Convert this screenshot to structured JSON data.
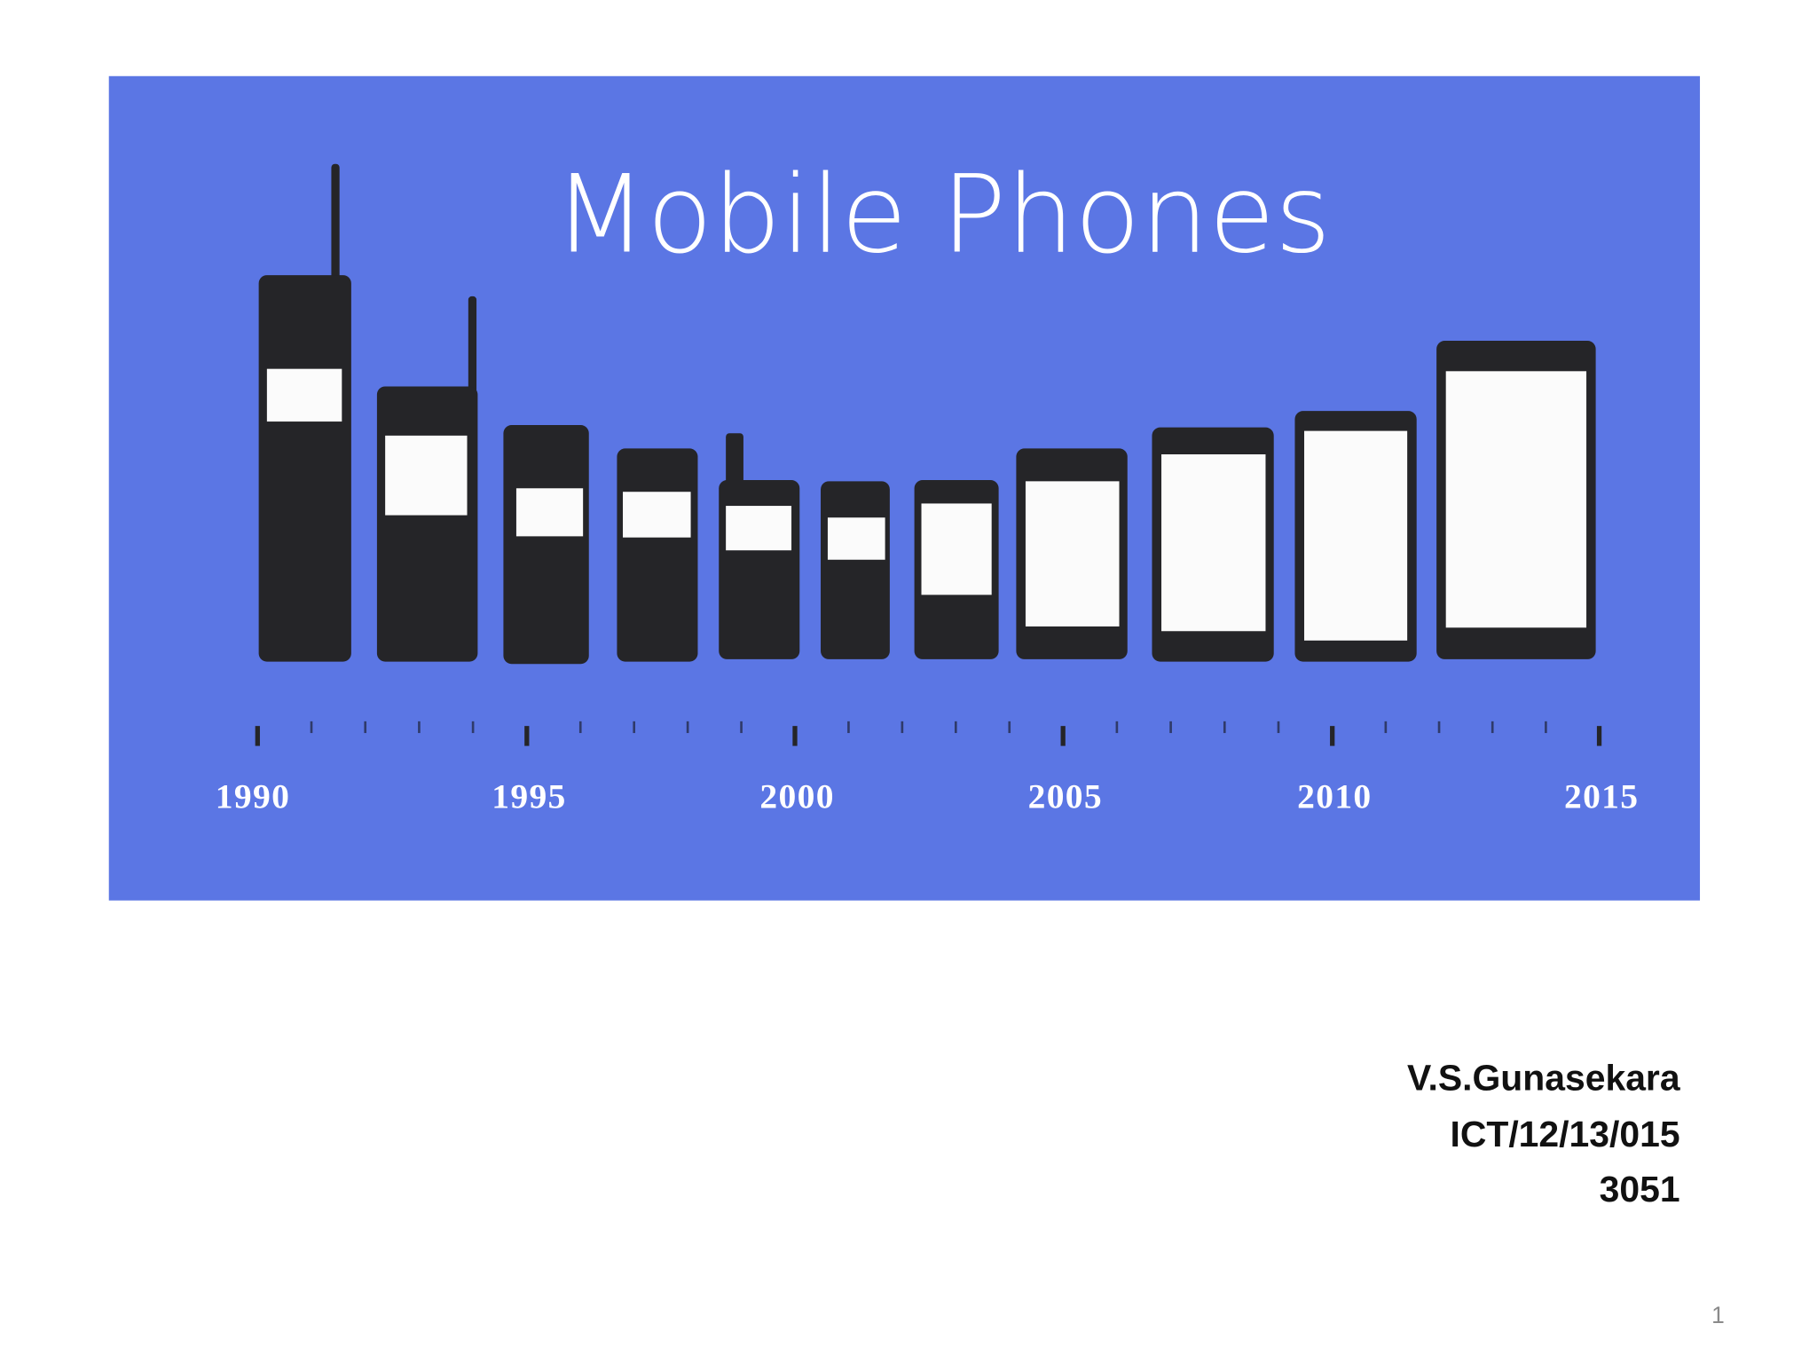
{
  "slide": {
    "title": "Mobile Phones",
    "timeline": [
      "1990",
      "1995",
      "2000",
      "2005",
      "2010",
      "2015"
    ],
    "author": [
      "V.S.Gunasekara",
      "ICT/12/13/015",
      "3051"
    ],
    "page_number": "1"
  }
}
